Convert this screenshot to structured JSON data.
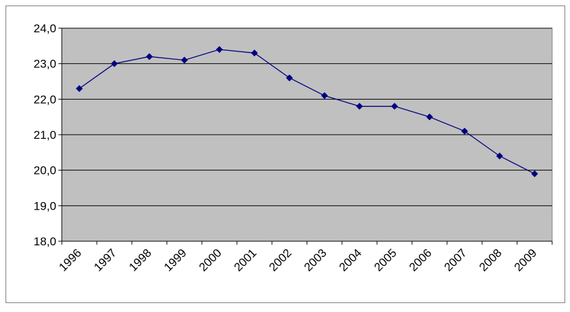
{
  "chart_data": {
    "type": "line",
    "categories": [
      "1996",
      "1997",
      "1998",
      "1999",
      "2000",
      "2001",
      "2002",
      "2003",
      "2004",
      "2005",
      "2006",
      "2007",
      "2008",
      "2009"
    ],
    "series": [
      {
        "name": null,
        "color": "#000080",
        "values": [
          22.3,
          23.0,
          23.2,
          23.1,
          23.4,
          23.3,
          22.6,
          22.1,
          21.8,
          21.8,
          21.5,
          21.1,
          20.4,
          19.9
        ]
      }
    ],
    "ylim": [
      18,
      24
    ],
    "yticks": [
      {
        "value": 18,
        "label": "18,0"
      },
      {
        "value": 19,
        "label": "19,0"
      },
      {
        "value": 20,
        "label": "20,0"
      },
      {
        "value": 21,
        "label": "21,0"
      },
      {
        "value": 22,
        "label": "22,0"
      },
      {
        "value": 23,
        "label": "23,0"
      },
      {
        "value": 24,
        "label": "24,0"
      }
    ],
    "grid": true,
    "plot_background": "#c0c0c0"
  }
}
